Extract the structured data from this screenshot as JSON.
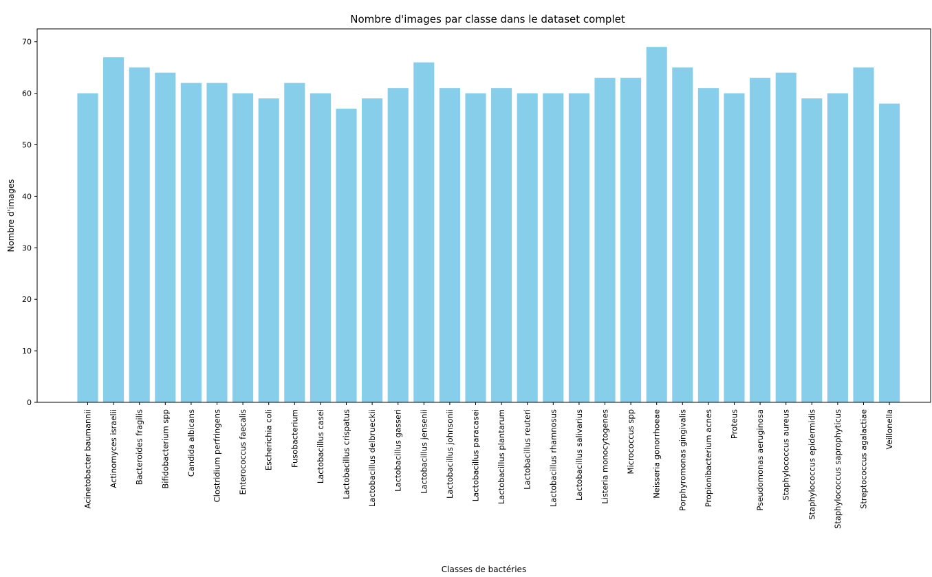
{
  "chart_data": {
    "type": "bar",
    "title": "Nombre d'images par classe dans le dataset complet",
    "xlabel": "Classes de bactéries",
    "ylabel": "Nombre d'images",
    "ylim": [
      0,
      72.5
    ],
    "yticks": [
      0,
      10,
      20,
      30,
      40,
      50,
      60,
      70
    ],
    "grid": false,
    "bar_color": "#87ceeb",
    "categories": [
      "Acinetobacter baumannii",
      "Actinomyces israelii",
      "Bacteroides fragilis",
      "Bifidobacterium spp",
      "Candida albicans",
      "Clostridium perfringens",
      "Enterococcus faecalis",
      "Escherichia coli",
      "Fusobacterium",
      "Lactobacillus casei",
      "Lactobacillus crispatus",
      "Lactobacillus delbrueckii",
      "Lactobacillus gasseri",
      "Lactobacillus jensenii",
      "Lactobacillus johnsonii",
      "Lactobacillus paracasei",
      "Lactobacillus plantarum",
      "Lactobacillus reuteri",
      "Lactobacillus rhamnosus",
      "Lactobacillus salivarius",
      "Listeria monocytogenes",
      "Micrococcus spp",
      "Neisseria gonorrhoeae",
      "Porphyromonas gingivalis",
      "Propionibacterium acnes",
      "Proteus",
      "Pseudomonas aeruginosa",
      "Staphylococcus aureus",
      "Staphylococcus epidermidis",
      "Staphylococcus saprophyticus",
      "Streptococcus agalactiae",
      "Veillonella"
    ],
    "values": [
      60,
      67,
      65,
      64,
      62,
      62,
      60,
      59,
      62,
      60,
      57,
      59,
      61,
      66,
      61,
      60,
      61,
      60,
      60,
      60,
      63,
      63,
      69,
      65,
      61,
      60,
      63,
      64,
      59,
      60,
      65,
      58
    ]
  }
}
